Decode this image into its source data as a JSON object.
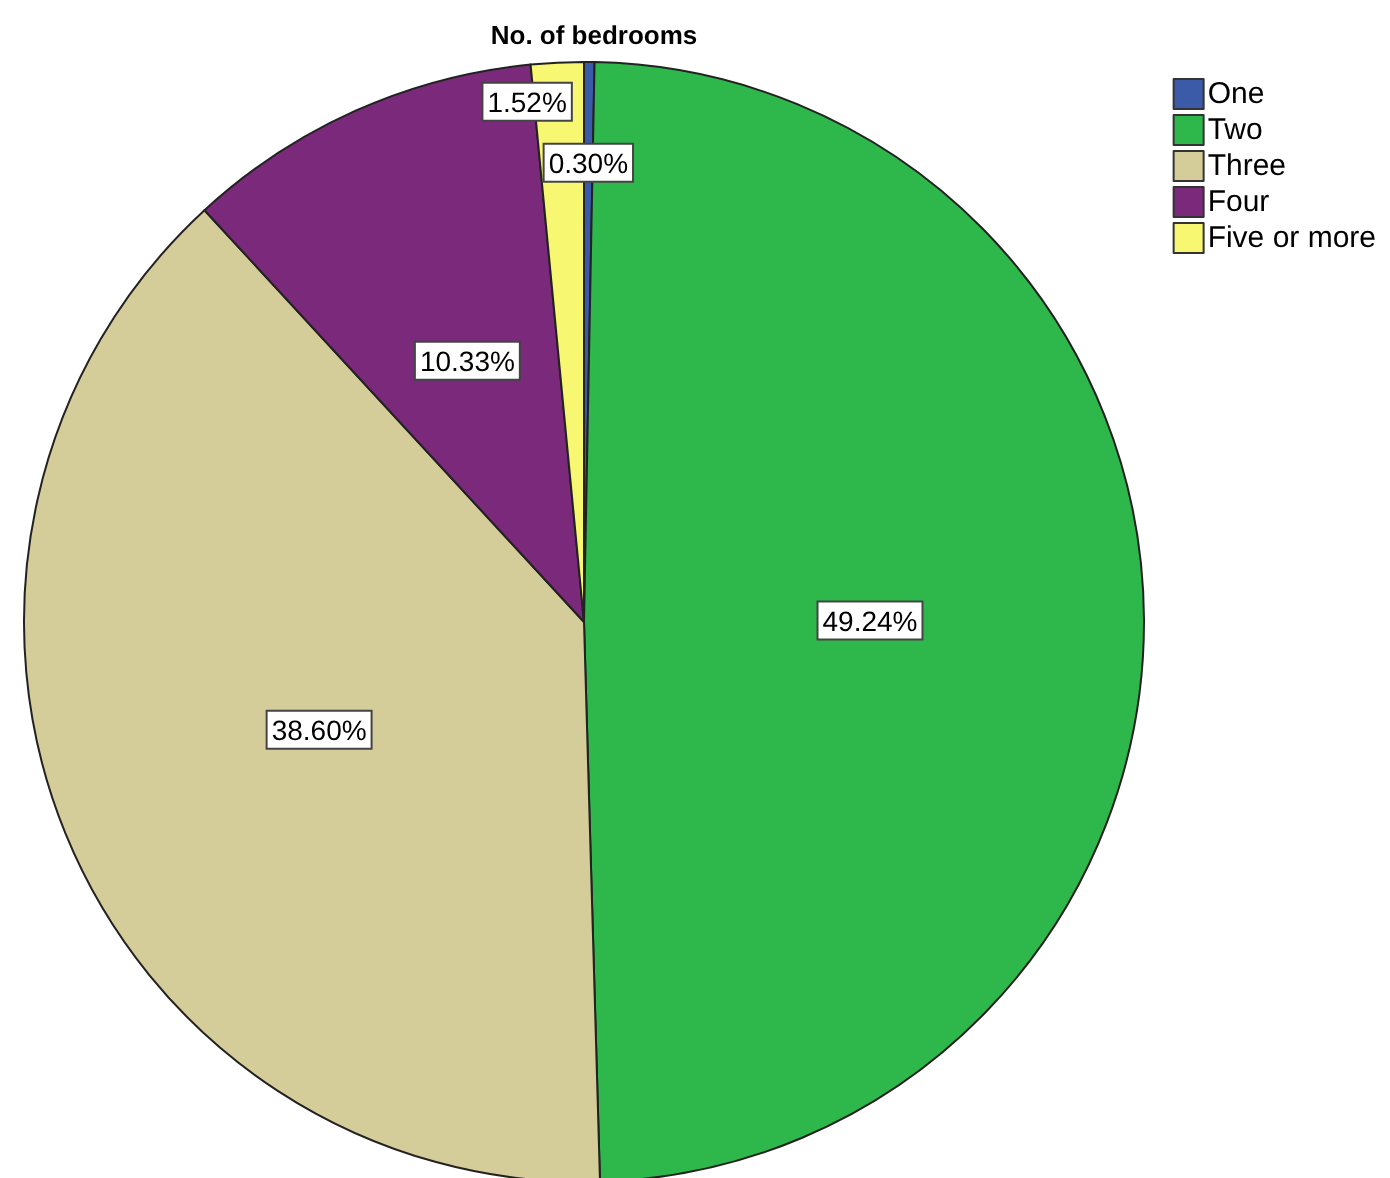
{
  "chart_data": {
    "type": "pie",
    "title": "No. of bedrooms",
    "categories": [
      "One",
      "Two",
      "Three",
      "Four",
      "Five or more"
    ],
    "values": [
      0.3,
      49.24,
      38.6,
      10.33,
      1.52
    ],
    "value_labels": [
      "0.30%",
      "49.24%",
      "38.60%",
      "10.33%",
      "1.52%"
    ],
    "colors": [
      "#3b5ba9",
      "#2eb84b",
      "#d5cd99",
      "#7b297b",
      "#f8f772"
    ],
    "legend": "top right"
  }
}
